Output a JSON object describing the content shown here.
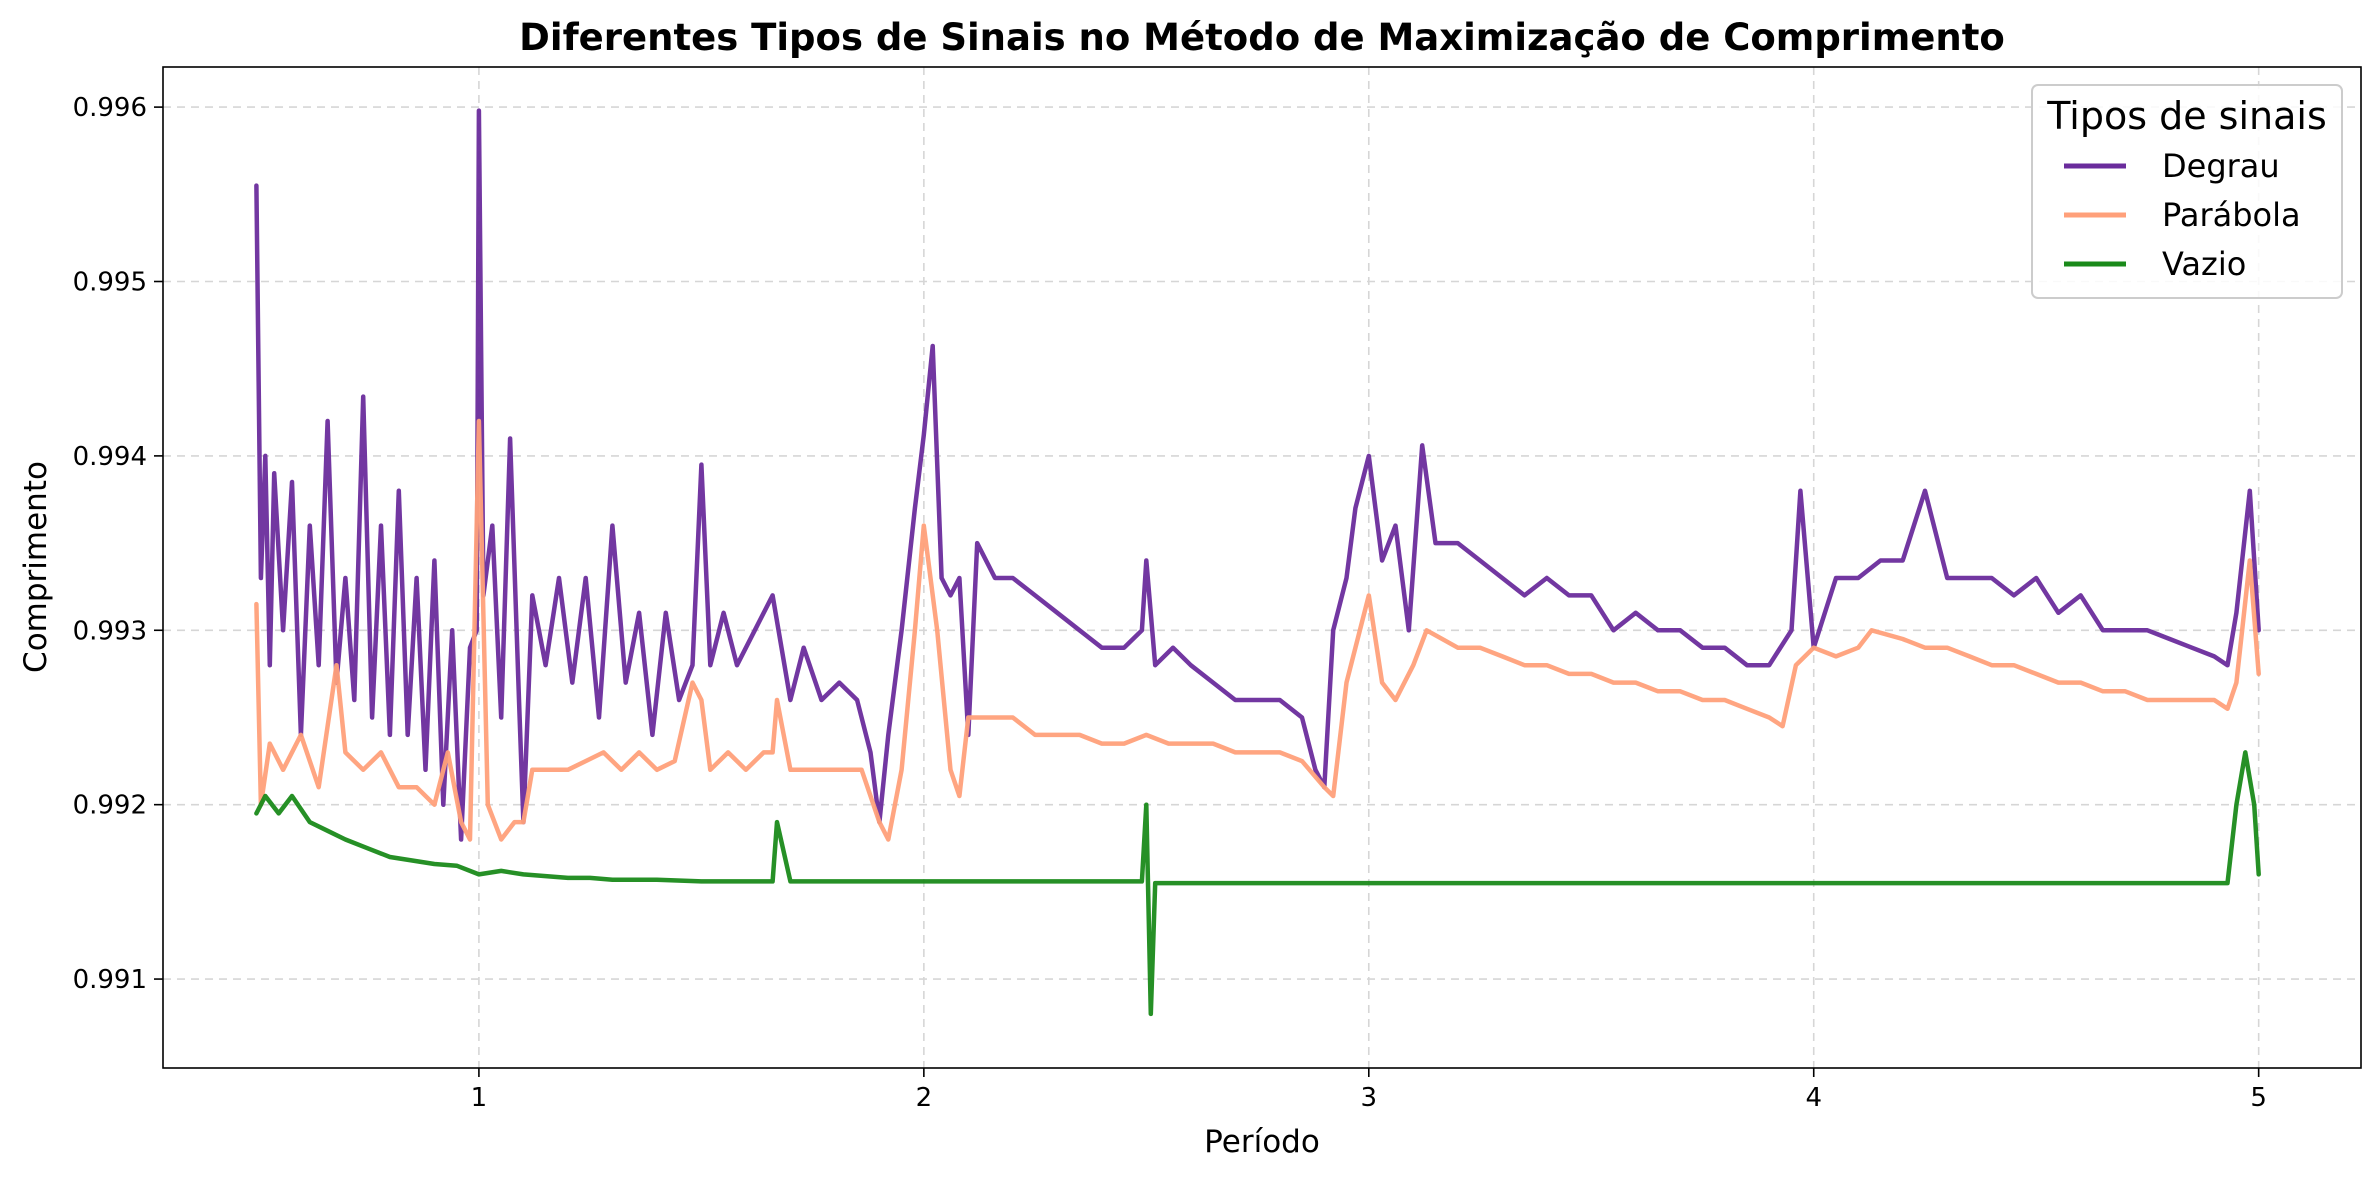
{
  "chart_data": {
    "type": "line",
    "title": "Diferentes Tipos de Sinais no Método de Maximização de Comprimento",
    "xlabel": "Período",
    "ylabel": "Comprimento",
    "xlim": [
      0.29,
      5.23
    ],
    "ylim": [
      0.99049,
      0.99623
    ],
    "x_ticks": [
      1,
      2,
      3,
      4,
      5
    ],
    "x_tick_labels": [
      "1",
      "2",
      "3",
      "4",
      "5"
    ],
    "y_ticks": [
      0.991,
      0.992,
      0.993,
      0.994,
      0.995,
      0.996
    ],
    "y_tick_labels": [
      "0.991",
      "0.992",
      "0.993",
      "0.994",
      "0.995",
      "0.996"
    ],
    "grid": true,
    "legend": {
      "title": "Tipos de sinais",
      "position": "top-right"
    },
    "series": [
      {
        "name": "Degrau",
        "color": "#6a2c9c",
        "points": [
          [
            0.5,
            0.99555
          ],
          [
            0.51,
            0.9933
          ],
          [
            0.52,
            0.994
          ],
          [
            0.53,
            0.9928
          ],
          [
            0.54,
            0.9939
          ],
          [
            0.56,
            0.993
          ],
          [
            0.58,
            0.99385
          ],
          [
            0.6,
            0.9924
          ],
          [
            0.62,
            0.9936
          ],
          [
            0.64,
            0.9928
          ],
          [
            0.66,
            0.9942
          ],
          [
            0.68,
            0.9927
          ],
          [
            0.7,
            0.9933
          ],
          [
            0.72,
            0.9926
          ],
          [
            0.74,
            0.99434
          ],
          [
            0.76,
            0.9925
          ],
          [
            0.78,
            0.9936
          ],
          [
            0.8,
            0.9924
          ],
          [
            0.82,
            0.9938
          ],
          [
            0.84,
            0.9924
          ],
          [
            0.86,
            0.9933
          ],
          [
            0.88,
            0.9922
          ],
          [
            0.9,
            0.9934
          ],
          [
            0.92,
            0.992
          ],
          [
            0.94,
            0.993
          ],
          [
            0.96,
            0.9918
          ],
          [
            0.98,
            0.9929
          ],
          [
            0.995,
            0.993
          ],
          [
            1.0,
            0.99598
          ],
          [
            1.01,
            0.9932
          ],
          [
            1.03,
            0.9936
          ],
          [
            1.05,
            0.9925
          ],
          [
            1.07,
            0.9941
          ],
          [
            1.09,
            0.9926
          ],
          [
            1.1,
            0.9919
          ],
          [
            1.12,
            0.9932
          ],
          [
            1.15,
            0.9928
          ],
          [
            1.18,
            0.9933
          ],
          [
            1.21,
            0.9927
          ],
          [
            1.24,
            0.9933
          ],
          [
            1.27,
            0.9925
          ],
          [
            1.3,
            0.9936
          ],
          [
            1.33,
            0.9927
          ],
          [
            1.36,
            0.9931
          ],
          [
            1.39,
            0.9924
          ],
          [
            1.42,
            0.9931
          ],
          [
            1.45,
            0.9926
          ],
          [
            1.48,
            0.9928
          ],
          [
            1.5,
            0.99395
          ],
          [
            1.52,
            0.9928
          ],
          [
            1.55,
            0.9931
          ],
          [
            1.58,
            0.9928
          ],
          [
            1.62,
            0.993
          ],
          [
            1.66,
            0.9932
          ],
          [
            1.7,
            0.9926
          ],
          [
            1.73,
            0.9929
          ],
          [
            1.77,
            0.9926
          ],
          [
            1.81,
            0.9927
          ],
          [
            1.85,
            0.9926
          ],
          [
            1.88,
            0.9923
          ],
          [
            1.9,
            0.9919
          ],
          [
            1.92,
            0.9924
          ],
          [
            1.95,
            0.993
          ],
          [
            1.98,
            0.9937
          ],
          [
            2.0,
            0.99412
          ],
          [
            2.02,
            0.99463
          ],
          [
            2.04,
            0.9933
          ],
          [
            2.06,
            0.9932
          ],
          [
            2.08,
            0.9933
          ],
          [
            2.1,
            0.9924
          ],
          [
            2.12,
            0.9935
          ],
          [
            2.16,
            0.9933
          ],
          [
            2.2,
            0.9933
          ],
          [
            2.25,
            0.9932
          ],
          [
            2.3,
            0.9931
          ],
          [
            2.35,
            0.993
          ],
          [
            2.4,
            0.9929
          ],
          [
            2.45,
            0.9929
          ],
          [
            2.49,
            0.993
          ],
          [
            2.5,
            0.9934
          ],
          [
            2.52,
            0.9928
          ],
          [
            2.56,
            0.9929
          ],
          [
            2.6,
            0.9928
          ],
          [
            2.65,
            0.9927
          ],
          [
            2.7,
            0.9926
          ],
          [
            2.75,
            0.9926
          ],
          [
            2.8,
            0.9926
          ],
          [
            2.85,
            0.9925
          ],
          [
            2.88,
            0.9922
          ],
          [
            2.9,
            0.9921
          ],
          [
            2.92,
            0.993
          ],
          [
            2.95,
            0.9933
          ],
          [
            2.97,
            0.9937
          ],
          [
            3.0,
            0.994
          ],
          [
            3.03,
            0.9934
          ],
          [
            3.06,
            0.9936
          ],
          [
            3.09,
            0.993
          ],
          [
            3.12,
            0.99406
          ],
          [
            3.15,
            0.9935
          ],
          [
            3.2,
            0.9935
          ],
          [
            3.25,
            0.9934
          ],
          [
            3.3,
            0.9933
          ],
          [
            3.35,
            0.9932
          ],
          [
            3.4,
            0.9933
          ],
          [
            3.45,
            0.9932
          ],
          [
            3.5,
            0.9932
          ],
          [
            3.55,
            0.993
          ],
          [
            3.6,
            0.9931
          ],
          [
            3.65,
            0.993
          ],
          [
            3.7,
            0.993
          ],
          [
            3.75,
            0.9929
          ],
          [
            3.8,
            0.9929
          ],
          [
            3.85,
            0.9928
          ],
          [
            3.9,
            0.9928
          ],
          [
            3.95,
            0.993
          ],
          [
            3.97,
            0.9938
          ],
          [
            4.0,
            0.9929
          ],
          [
            4.05,
            0.9933
          ],
          [
            4.1,
            0.9933
          ],
          [
            4.15,
            0.9934
          ],
          [
            4.2,
            0.9934
          ],
          [
            4.25,
            0.9938
          ],
          [
            4.3,
            0.9933
          ],
          [
            4.35,
            0.9933
          ],
          [
            4.4,
            0.9933
          ],
          [
            4.45,
            0.9932
          ],
          [
            4.5,
            0.9933
          ],
          [
            4.55,
            0.9931
          ],
          [
            4.6,
            0.9932
          ],
          [
            4.65,
            0.993
          ],
          [
            4.7,
            0.993
          ],
          [
            4.75,
            0.993
          ],
          [
            4.8,
            0.99295
          ],
          [
            4.85,
            0.9929
          ],
          [
            4.9,
            0.99285
          ],
          [
            4.93,
            0.9928
          ],
          [
            4.95,
            0.9931
          ],
          [
            4.98,
            0.9938
          ],
          [
            5.0,
            0.993
          ]
        ]
      },
      {
        "name": "Parábola",
        "color": "#ffa07a",
        "points": [
          [
            0.5,
            0.99315
          ],
          [
            0.51,
            0.992
          ],
          [
            0.53,
            0.99235
          ],
          [
            0.56,
            0.9922
          ],
          [
            0.6,
            0.9924
          ],
          [
            0.64,
            0.9921
          ],
          [
            0.68,
            0.9928
          ],
          [
            0.7,
            0.9923
          ],
          [
            0.74,
            0.9922
          ],
          [
            0.78,
            0.9923
          ],
          [
            0.82,
            0.9921
          ],
          [
            0.86,
            0.9921
          ],
          [
            0.9,
            0.992
          ],
          [
            0.93,
            0.9923
          ],
          [
            0.96,
            0.9919
          ],
          [
            0.98,
            0.9918
          ],
          [
            1.0,
            0.9942
          ],
          [
            1.02,
            0.992
          ],
          [
            1.05,
            0.9918
          ],
          [
            1.08,
            0.9919
          ],
          [
            1.1,
            0.9919
          ],
          [
            1.12,
            0.9922
          ],
          [
            1.16,
            0.9922
          ],
          [
            1.2,
            0.9922
          ],
          [
            1.24,
            0.99225
          ],
          [
            1.28,
            0.9923
          ],
          [
            1.32,
            0.9922
          ],
          [
            1.36,
            0.9923
          ],
          [
            1.4,
            0.9922
          ],
          [
            1.44,
            0.99225
          ],
          [
            1.48,
            0.9927
          ],
          [
            1.5,
            0.9926
          ],
          [
            1.52,
            0.9922
          ],
          [
            1.56,
            0.9923
          ],
          [
            1.6,
            0.9922
          ],
          [
            1.64,
            0.9923
          ],
          [
            1.66,
            0.9923
          ],
          [
            1.67,
            0.9926
          ],
          [
            1.7,
            0.9922
          ],
          [
            1.74,
            0.9922
          ],
          [
            1.78,
            0.9922
          ],
          [
            1.82,
            0.9922
          ],
          [
            1.86,
            0.9922
          ],
          [
            1.9,
            0.9919
          ],
          [
            1.92,
            0.9918
          ],
          [
            1.95,
            0.9922
          ],
          [
            1.98,
            0.993
          ],
          [
            2.0,
            0.9936
          ],
          [
            2.03,
            0.993
          ],
          [
            2.06,
            0.9922
          ],
          [
            2.08,
            0.99205
          ],
          [
            2.1,
            0.9925
          ],
          [
            2.15,
            0.9925
          ],
          [
            2.2,
            0.9925
          ],
          [
            2.25,
            0.9924
          ],
          [
            2.3,
            0.9924
          ],
          [
            2.35,
            0.9924
          ],
          [
            2.4,
            0.99235
          ],
          [
            2.45,
            0.99235
          ],
          [
            2.5,
            0.9924
          ],
          [
            2.55,
            0.99235
          ],
          [
            2.6,
            0.99235
          ],
          [
            2.65,
            0.99235
          ],
          [
            2.7,
            0.9923
          ],
          [
            2.75,
            0.9923
          ],
          [
            2.8,
            0.9923
          ],
          [
            2.85,
            0.99225
          ],
          [
            2.9,
            0.9921
          ],
          [
            2.92,
            0.99205
          ],
          [
            2.95,
            0.9927
          ],
          [
            3.0,
            0.9932
          ],
          [
            3.03,
            0.9927
          ],
          [
            3.06,
            0.9926
          ],
          [
            3.1,
            0.9928
          ],
          [
            3.13,
            0.993
          ],
          [
            3.2,
            0.9929
          ],
          [
            3.25,
            0.9929
          ],
          [
            3.3,
            0.99285
          ],
          [
            3.35,
            0.9928
          ],
          [
            3.4,
            0.9928
          ],
          [
            3.45,
            0.99275
          ],
          [
            3.5,
            0.99275
          ],
          [
            3.55,
            0.9927
          ],
          [
            3.6,
            0.9927
          ],
          [
            3.65,
            0.99265
          ],
          [
            3.7,
            0.99265
          ],
          [
            3.75,
            0.9926
          ],
          [
            3.8,
            0.9926
          ],
          [
            3.85,
            0.99255
          ],
          [
            3.9,
            0.9925
          ],
          [
            3.93,
            0.99245
          ],
          [
            3.96,
            0.9928
          ],
          [
            4.0,
            0.9929
          ],
          [
            4.05,
            0.99285
          ],
          [
            4.1,
            0.9929
          ],
          [
            4.13,
            0.993
          ],
          [
            4.2,
            0.99295
          ],
          [
            4.25,
            0.9929
          ],
          [
            4.3,
            0.9929
          ],
          [
            4.35,
            0.99285
          ],
          [
            4.4,
            0.9928
          ],
          [
            4.45,
            0.9928
          ],
          [
            4.5,
            0.99275
          ],
          [
            4.55,
            0.9927
          ],
          [
            4.6,
            0.9927
          ],
          [
            4.65,
            0.99265
          ],
          [
            4.7,
            0.99265
          ],
          [
            4.75,
            0.9926
          ],
          [
            4.8,
            0.9926
          ],
          [
            4.85,
            0.9926
          ],
          [
            4.9,
            0.9926
          ],
          [
            4.93,
            0.99255
          ],
          [
            4.95,
            0.9927
          ],
          [
            4.98,
            0.9934
          ],
          [
            5.0,
            0.99275
          ]
        ]
      },
      {
        "name": "Vazio",
        "color": "#1a8a1a",
        "points": [
          [
            0.5,
            0.99195
          ],
          [
            0.52,
            0.99205
          ],
          [
            0.55,
            0.99195
          ],
          [
            0.58,
            0.99205
          ],
          [
            0.62,
            0.9919
          ],
          [
            0.66,
            0.99185
          ],
          [
            0.7,
            0.9918
          ],
          [
            0.75,
            0.99175
          ],
          [
            0.8,
            0.9917
          ],
          [
            0.85,
            0.99168
          ],
          [
            0.9,
            0.99166
          ],
          [
            0.95,
            0.99165
          ],
          [
            1.0,
            0.9916
          ],
          [
            1.05,
            0.99162
          ],
          [
            1.1,
            0.9916
          ],
          [
            1.2,
            0.99158
          ],
          [
            1.25,
            0.99158
          ],
          [
            1.3,
            0.99157
          ],
          [
            1.4,
            0.99157
          ],
          [
            1.5,
            0.99156
          ],
          [
            1.6,
            0.99156
          ],
          [
            1.66,
            0.99156
          ],
          [
            1.67,
            0.9919
          ],
          [
            1.7,
            0.99156
          ],
          [
            1.8,
            0.99156
          ],
          [
            1.9,
            0.99156
          ],
          [
            2.0,
            0.99156
          ],
          [
            2.1,
            0.99156
          ],
          [
            2.2,
            0.99156
          ],
          [
            2.3,
            0.99156
          ],
          [
            2.4,
            0.99156
          ],
          [
            2.49,
            0.99156
          ],
          [
            2.5,
            0.992
          ],
          [
            2.51,
            0.9908
          ],
          [
            2.52,
            0.99155
          ],
          [
            2.6,
            0.99155
          ],
          [
            2.8,
            0.99155
          ],
          [
            3.0,
            0.99155
          ],
          [
            3.2,
            0.99155
          ],
          [
            3.4,
            0.99155
          ],
          [
            3.6,
            0.99155
          ],
          [
            3.8,
            0.99155
          ],
          [
            4.0,
            0.99155
          ],
          [
            4.2,
            0.99155
          ],
          [
            4.4,
            0.99155
          ],
          [
            4.6,
            0.99155
          ],
          [
            4.8,
            0.99155
          ],
          [
            4.93,
            0.99155
          ],
          [
            4.95,
            0.992
          ],
          [
            4.97,
            0.9923
          ],
          [
            4.99,
            0.992
          ],
          [
            5.0,
            0.9916
          ]
        ]
      }
    ]
  }
}
